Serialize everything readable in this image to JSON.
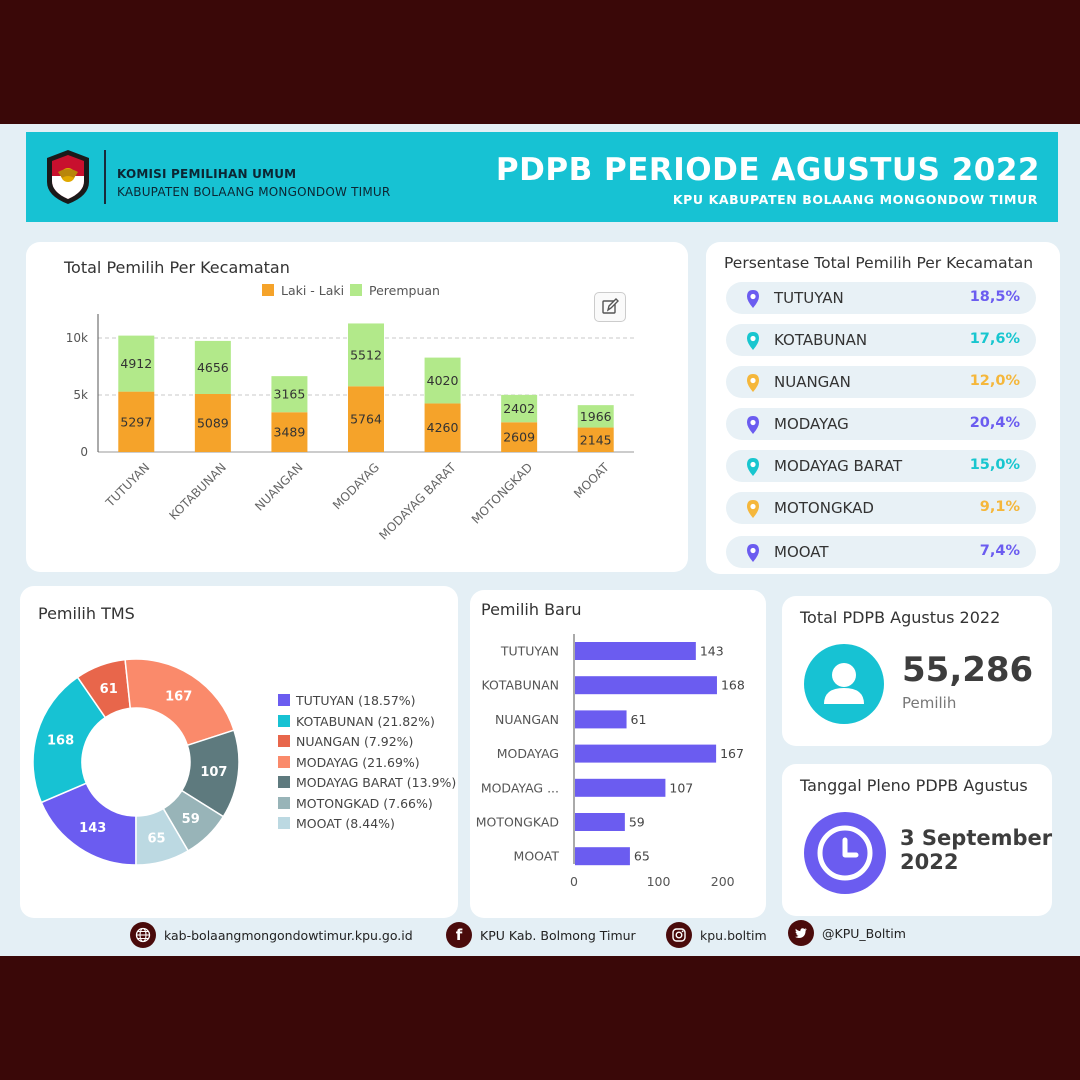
{
  "header": {
    "org_line1": "KOMISI PEMILIHAN UMUM",
    "org_line2": "KABUPATEN BOLAANG MONGONDOW TIMUR",
    "title": "PDPB PERIODE AGUSTUS 2022",
    "subtitle": "KPU KABUPATEN BOLAANG MONGONDOW TIMUR"
  },
  "stacked": {
    "title": "Total Pemilih Per Kecamatan",
    "legend_male": "Laki - Laki",
    "legend_female": "Perempuan"
  },
  "percent_panel": {
    "title": "Persentase Total Pemilih Per Kecamatan",
    "items": [
      {
        "name": "TUTUYAN",
        "value": "18,5%",
        "color": "#6b5cf0"
      },
      {
        "name": "KOTABUNAN",
        "value": "17,6%",
        "color": "#18c6cf"
      },
      {
        "name": "NUANGAN",
        "value": "12,0%",
        "color": "#f5b73b"
      },
      {
        "name": "MODAYAG",
        "value": "20,4%",
        "color": "#6b5cf0"
      },
      {
        "name": "MODAYAG BARAT",
        "value": "15,0%",
        "color": "#18c6cf"
      },
      {
        "name": "MOTONGKAD",
        "value": "9,1%",
        "color": "#f5b73b"
      },
      {
        "name": "MOOAT",
        "value": "7,4%",
        "color": "#6b5cf0"
      }
    ]
  },
  "tms": {
    "title": "Pemilih TMS",
    "legend": [
      "TUTUYAN (18.57%)",
      "KOTABUNAN (21.82%)",
      "NUANGAN (7.92%)",
      "MODAYAG (21.69%)",
      "MODAYAG BARAT (13.9%)",
      "MOTONGKAD (7.66%)",
      "MOOAT (8.44%)"
    ]
  },
  "baru": {
    "title": "Pemilih Baru"
  },
  "total": {
    "title": "Total PDPB Agustus 2022",
    "value": "55,286",
    "unit": "Pemilih"
  },
  "pleno": {
    "title": "Tanggal Pleno PDPB Agustus",
    "date_line1": "3 September",
    "date_line2": "2022"
  },
  "footer": {
    "website": "kab-bolaangmongondowtimur.kpu.go.id",
    "facebook": "KPU Kab. Bolmong Timur",
    "instagram": "kpu.boltim",
    "twitter": "@KPU_Boltim"
  },
  "colors": {
    "banner": "#17c2d3",
    "male": "#f5a32a",
    "female": "#b2e98a",
    "bar": "#6b5cf0"
  },
  "chart_data": [
    {
      "type": "bar",
      "title": "Total Pemilih Per Kecamatan",
      "categories": [
        "TUTUYAN",
        "KOTABUNAN",
        "NUANGAN",
        "MODAYAG",
        "MODAYAG BARAT",
        "MOTONGKAD",
        "MOOAT"
      ],
      "series": [
        {
          "name": "Laki - Laki",
          "values": [
            5297,
            5089,
            3489,
            5764,
            4260,
            2609,
            2145
          ],
          "color": "#f5a32a"
        },
        {
          "name": "Perempuan",
          "values": [
            4912,
            4656,
            3165,
            5512,
            4020,
            2402,
            1966
          ],
          "color": "#b2e98a"
        }
      ],
      "stacked": true,
      "yticks": [
        "0",
        "5k",
        "10k"
      ],
      "ylim": [
        0,
        12000
      ],
      "grid": true,
      "legend": "top"
    },
    {
      "type": "pie",
      "title": "Pemilih TMS",
      "labels": [
        "TUTUYAN",
        "KOTABUNAN",
        "NUANGAN",
        "MODAYAG",
        "MODAYAG BARAT",
        "MOTONGKAD",
        "MOOAT"
      ],
      "values": [
        143,
        168,
        61,
        167,
        107,
        59,
        65
      ],
      "colors": [
        "#6b5cf0",
        "#17c2d3",
        "#e8664b",
        "#fa8a6b",
        "#5e7a7e",
        "#98b4b8",
        "#bcd9e2"
      ],
      "legend": "right"
    },
    {
      "type": "bar",
      "orientation": "horizontal",
      "title": "Pemilih Baru",
      "categories": [
        "TUTUYAN",
        "KOTABUNAN",
        "NUANGAN",
        "MODAYAG",
        "MODAYAG ...",
        "MOTONGKAD",
        "MOOAT"
      ],
      "values": [
        143,
        168,
        61,
        167,
        107,
        59,
        65
      ],
      "xticks": [
        "0",
        "100",
        "200"
      ],
      "xlim": [
        0,
        200
      ],
      "color": "#6b5cf0"
    }
  ]
}
